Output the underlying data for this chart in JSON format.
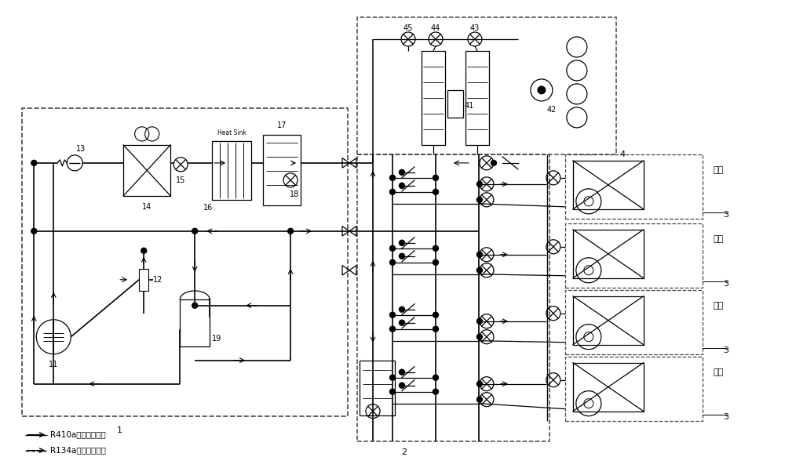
{
  "bg_color": "#ffffff",
  "line_color": "#000000",
  "labels": {
    "legend1": "R410a冷媒流动方向",
    "legend2": "R134a冷媒流动方向",
    "l1": "1",
    "l2": "2",
    "l3": "3",
    "l4": "4",
    "l11": "11",
    "l12": "12",
    "l13": "13",
    "l14": "14",
    "l15": "15",
    "l16": "16",
    "l17": "17",
    "l18": "18",
    "l19": "19",
    "l41": "41",
    "l42": "42",
    "l43": "43",
    "l44": "44",
    "l45": "45",
    "heatsink": "Heat Sink",
    "mode1": "关机",
    "mode2": "制热",
    "mode3": "制冷",
    "mode4": "制冷"
  }
}
